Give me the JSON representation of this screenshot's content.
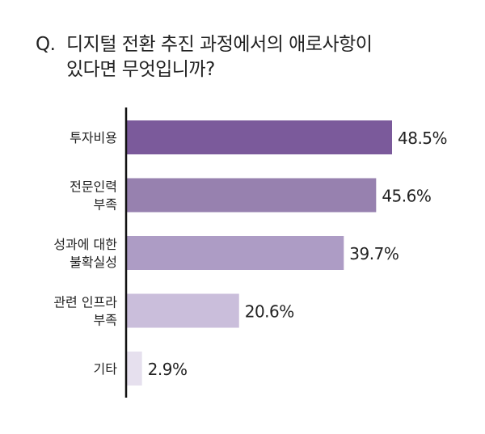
{
  "title": {
    "prefix": "Q.",
    "line1": "디지털 전환 추진 과정에서의 애로사항이",
    "line2": "있다면 무엇입니까?"
  },
  "chart_data": {
    "type": "bar",
    "orientation": "horizontal",
    "categories": [
      [
        "투자비용"
      ],
      [
        "전문인력",
        "부족"
      ],
      [
        "성과에 대한",
        "불확실성"
      ],
      [
        "관련 인프라",
        "부족"
      ],
      [
        "기타"
      ]
    ],
    "values": [
      48.5,
      45.6,
      39.7,
      20.6,
      2.9
    ],
    "value_labels": [
      "48.5%",
      "45.6%",
      "39.7%",
      "20.6%",
      "2.9%"
    ],
    "colors": [
      "#7b5a9b",
      "#9781af",
      "#ad9cc5",
      "#cabedb",
      "#e6e0ee"
    ],
    "xlim": [
      0,
      55
    ],
    "grid": false,
    "legend": "none"
  }
}
